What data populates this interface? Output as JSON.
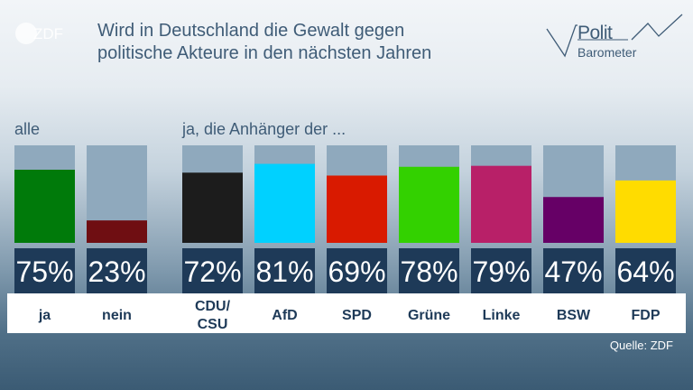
{
  "header": {
    "logo_text": "ZDF",
    "title_line1": "Wird in Deutschland die Gewalt gegen",
    "title_line2": "politische Akteure in den nächsten Jahren",
    "brand_top": "Polit",
    "brand_bottom": "Barometer"
  },
  "sections": {
    "left": "alle",
    "right": "ja, die Anhänger der ..."
  },
  "source": "Quelle: ZDF",
  "colors": {
    "ja": "#007a0a",
    "nein": "#6f0e12",
    "CDU/CSU": "#1c1c1c",
    "AfD": "#00d1ff",
    "SPD": "#d91a00",
    "Grüne": "#33d100",
    "Linke": "#b82068",
    "BSW": "#660066",
    "FDP": "#ffdc00"
  },
  "chart_data": {
    "type": "bar",
    "ylim": [
      0,
      100
    ],
    "bars": [
      {
        "label": "ja",
        "value": 75,
        "value_label": "75%"
      },
      {
        "label": "nein",
        "value": 23,
        "value_label": "23%"
      },
      {
        "label": "CDU/\nCSU",
        "value": 72,
        "value_label": "72%"
      },
      {
        "label": "AfD",
        "value": 81,
        "value_label": "81%"
      },
      {
        "label": "SPD",
        "value": 69,
        "value_label": "69%"
      },
      {
        "label": "Grüne",
        "value": 78,
        "value_label": "78%"
      },
      {
        "label": "Linke",
        "value": 79,
        "value_label": "79%"
      },
      {
        "label": "BSW",
        "value": 47,
        "value_label": "47%"
      },
      {
        "label": "FDP",
        "value": 64,
        "value_label": "64%"
      }
    ]
  }
}
